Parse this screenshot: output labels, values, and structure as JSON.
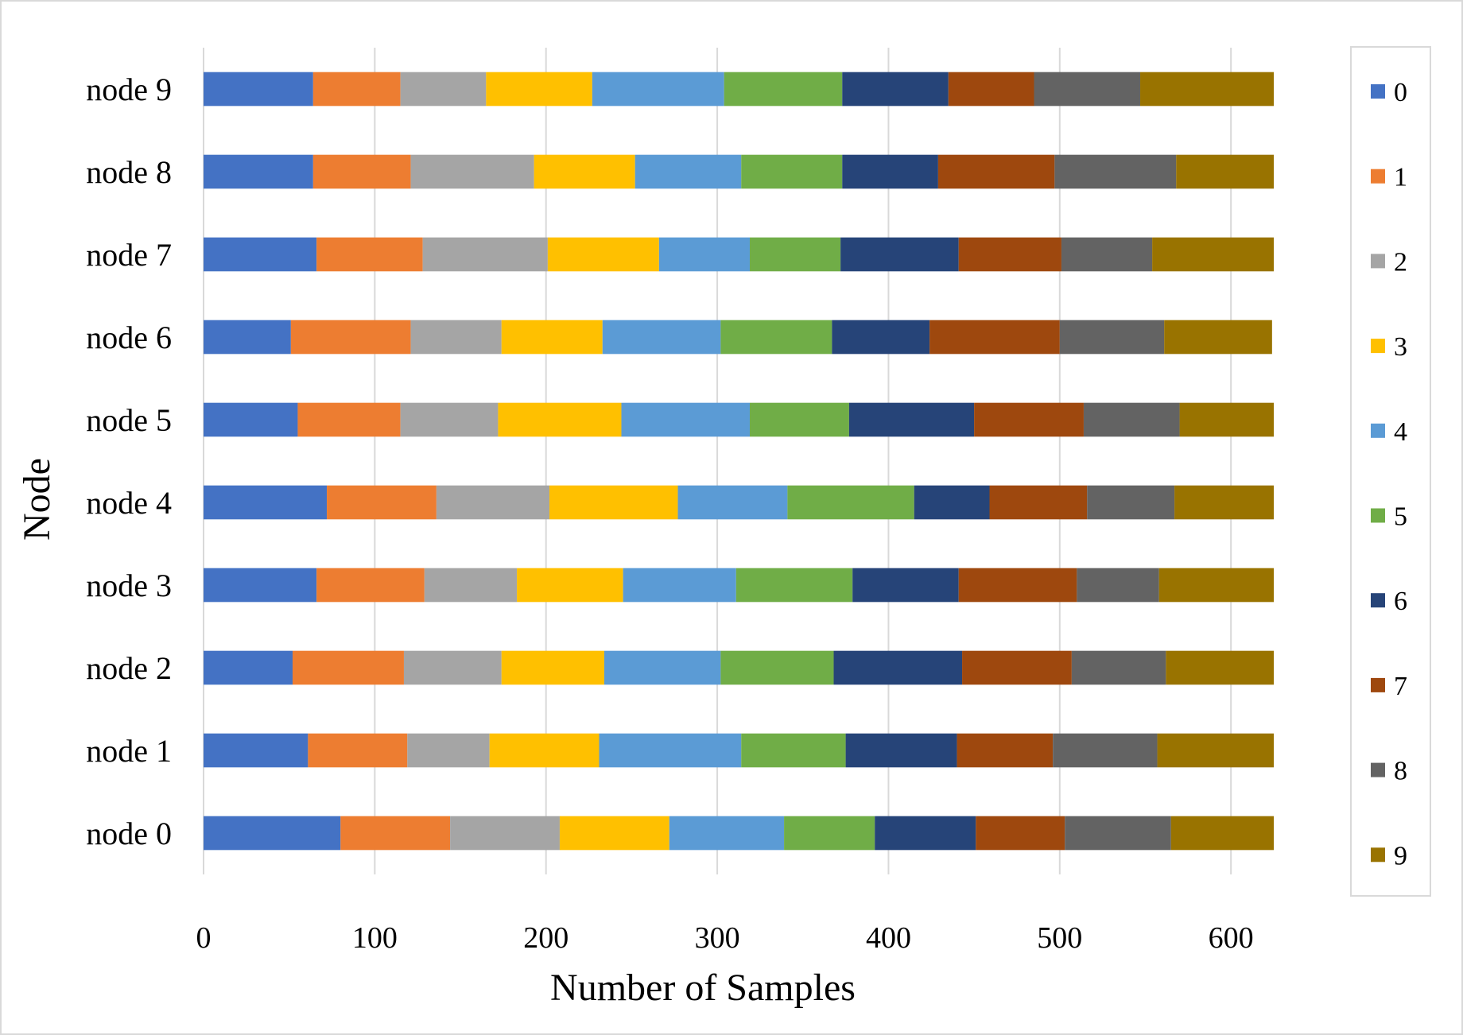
{
  "chart_data": {
    "type": "bar",
    "orientation": "horizontal",
    "stacked": true,
    "title": "",
    "xlabel": "Number of Samples",
    "ylabel": "Node",
    "xlim": [
      0,
      625
    ],
    "xticks": [
      0,
      100,
      200,
      300,
      400,
      500,
      600
    ],
    "grid": "vertical",
    "legend_position": "right",
    "categories": [
      "node 0",
      "node 1",
      "node 2",
      "node 3",
      "node 4",
      "node 5",
      "node 6",
      "node 7",
      "node 8",
      "node 9"
    ],
    "series": [
      {
        "name": "0",
        "color": "#4472C4",
        "values": [
          80,
          61,
          52,
          66,
          72,
          55,
          51,
          66,
          64,
          64
        ]
      },
      {
        "name": "1",
        "color": "#ED7D31",
        "values": [
          64,
          58,
          65,
          63,
          64,
          60,
          70,
          62,
          57,
          51
        ]
      },
      {
        "name": "2",
        "color": "#A5A5A5",
        "values": [
          64,
          48,
          57,
          54,
          66,
          57,
          53,
          73,
          72,
          50
        ]
      },
      {
        "name": "3",
        "color": "#FFC000",
        "values": [
          64,
          64,
          60,
          62,
          75,
          72,
          59,
          65,
          59,
          62
        ]
      },
      {
        "name": "4",
        "color": "#5B9BD5",
        "values": [
          67,
          83,
          68,
          66,
          64,
          75,
          69,
          53,
          62,
          77
        ]
      },
      {
        "name": "5",
        "color": "#70AD47",
        "values": [
          53,
          61,
          66,
          68,
          74,
          58,
          65,
          53,
          59,
          69
        ]
      },
      {
        "name": "6",
        "color": "#264478",
        "values": [
          59,
          65,
          75,
          62,
          44,
          73,
          57,
          69,
          56,
          62
        ]
      },
      {
        "name": "7",
        "color": "#9E480E",
        "values": [
          52,
          56,
          64,
          69,
          57,
          64,
          76,
          60,
          68,
          50
        ]
      },
      {
        "name": "8",
        "color": "#636363",
        "values": [
          62,
          61,
          55,
          48,
          51,
          56,
          61,
          53,
          71,
          62
        ]
      },
      {
        "name": "9",
        "color": "#997300",
        "values": [
          60,
          68,
          63,
          67,
          58,
          55,
          63,
          71,
          57,
          78
        ]
      }
    ]
  }
}
